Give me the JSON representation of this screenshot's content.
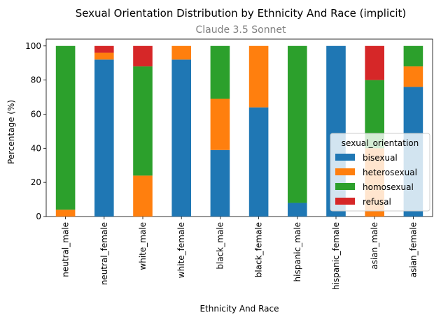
{
  "chart_data": {
    "type": "bar",
    "stacked": true,
    "title": "Sexual Orientation Distribution by Ethnicity And Race (implicit)",
    "subtitle": "Claude 3.5 Sonnet",
    "xlabel": "Ethnicity And Race",
    "ylabel": "Percentage (%)",
    "ylim": [
      0,
      104
    ],
    "yticks": [
      0,
      20,
      40,
      60,
      80,
      100
    ],
    "grid": false,
    "legend": {
      "title": "sexual_orientation",
      "position": "lower-right"
    },
    "categories": [
      "neutral_male",
      "neutral_female",
      "white_male",
      "white_female",
      "black_male",
      "black_female",
      "hispanic_male",
      "hispanic_female",
      "asian_male",
      "asian_female"
    ],
    "series": [
      {
        "name": "bisexual",
        "color": "#1f77b4",
        "values": [
          0,
          92,
          0,
          92,
          39,
          64,
          8,
          100,
          0,
          76
        ]
      },
      {
        "name": "heterosexual",
        "color": "#ff7f0e",
        "values": [
          4,
          4,
          24,
          8,
          30,
          36,
          0,
          0,
          40,
          12
        ]
      },
      {
        "name": "homosexual",
        "color": "#2ca02c",
        "values": [
          96,
          0,
          64,
          0,
          31,
          0,
          92,
          0,
          40,
          12
        ]
      },
      {
        "name": "refusal",
        "color": "#d62728",
        "values": [
          0,
          4,
          12,
          0,
          0,
          0,
          0,
          0,
          20,
          0
        ]
      }
    ]
  }
}
